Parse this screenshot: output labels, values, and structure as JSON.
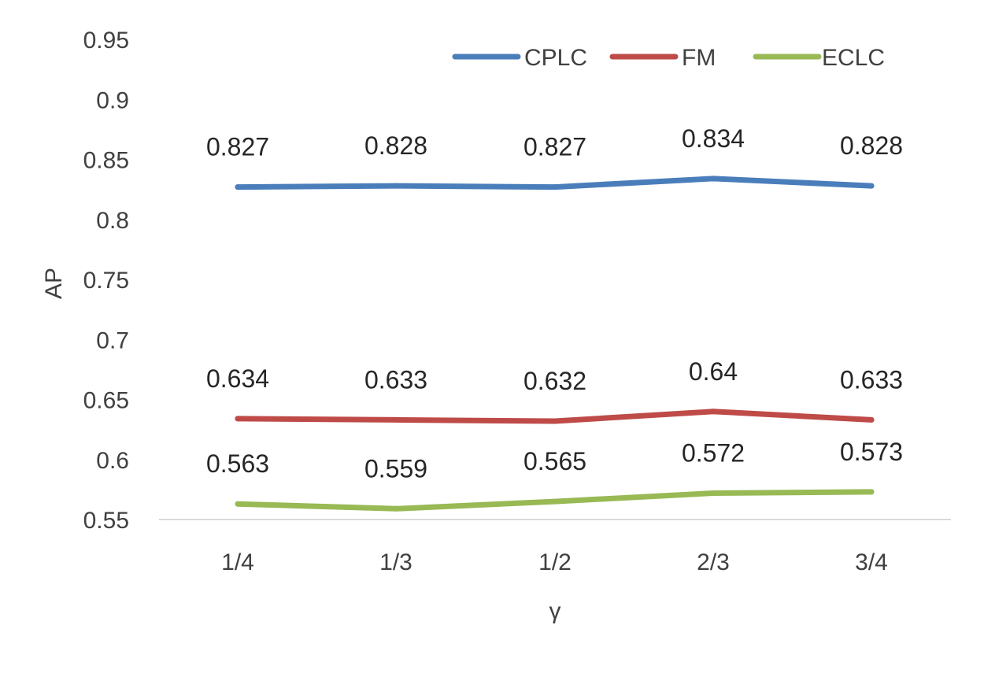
{
  "chart_data": {
    "type": "line",
    "title": "",
    "xlabel": "γ",
    "ylabel": "AP",
    "categories": [
      "1/4",
      "1/3",
      "1/2",
      "2/3",
      "3/4"
    ],
    "ylim": [
      0.55,
      0.95
    ],
    "yticks": [
      "0.55",
      "0.6",
      "0.65",
      "0.7",
      "0.75",
      "0.8",
      "0.85",
      "0.9",
      "0.95"
    ],
    "grid": false,
    "legend_position": "top-right",
    "series": [
      {
        "name": "CPLC",
        "color": "#4a7ebb",
        "values": [
          0.827,
          0.828,
          0.827,
          0.834,
          0.828
        ],
        "labels": [
          "0.827",
          "0.828",
          "0.827",
          "0.834",
          "0.828"
        ]
      },
      {
        "name": "FM",
        "color": "#be4b48",
        "values": [
          0.634,
          0.633,
          0.632,
          0.64,
          0.633
        ],
        "labels": [
          "0.634",
          "0.633",
          "0.632",
          "0.64",
          "0.633"
        ]
      },
      {
        "name": "ECLC",
        "color": "#98b954",
        "values": [
          0.563,
          0.559,
          0.565,
          0.572,
          0.573
        ],
        "labels": [
          "0.563",
          "0.559",
          "0.565",
          "0.572",
          "0.573"
        ]
      }
    ]
  }
}
